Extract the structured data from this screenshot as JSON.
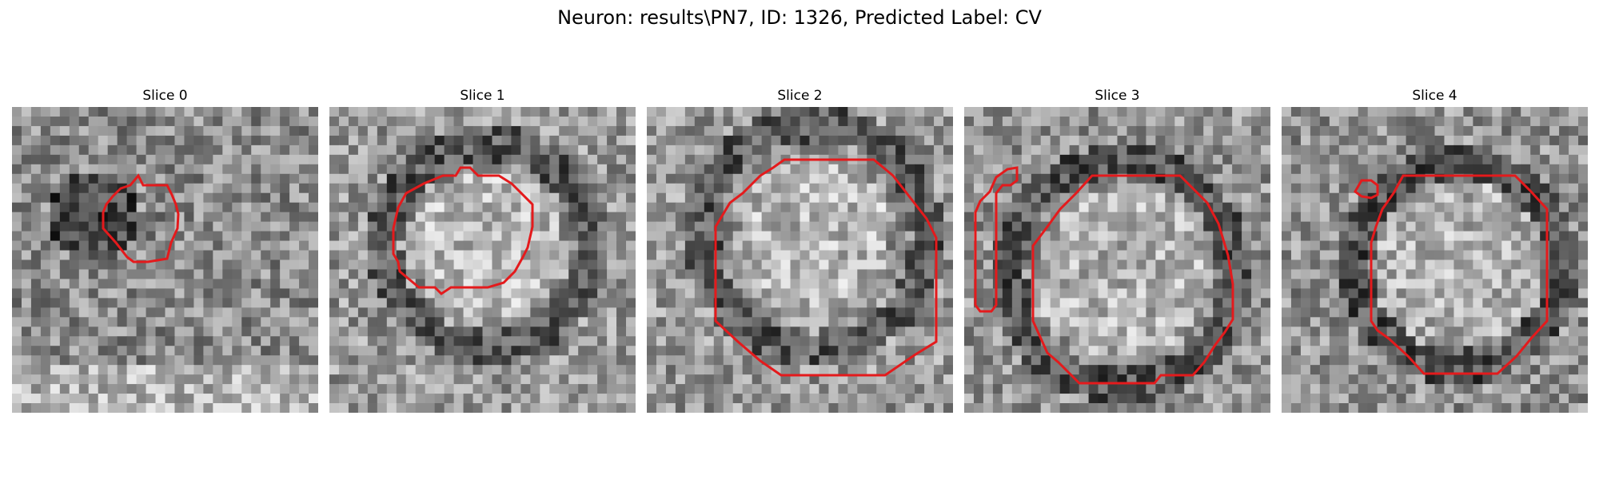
{
  "figure": {
    "title": "Neuron: results\\PN7, ID: 1326, Predicted Label: CV"
  },
  "panels": [
    {
      "title": "Slice 0"
    },
    {
      "title": "Slice 1"
    },
    {
      "title": "Slice 2"
    },
    {
      "title": "Slice 3"
    },
    {
      "title": "Slice 4"
    }
  ],
  "colors": {
    "contour": "#e41a1c",
    "background": "#ffffff"
  }
}
